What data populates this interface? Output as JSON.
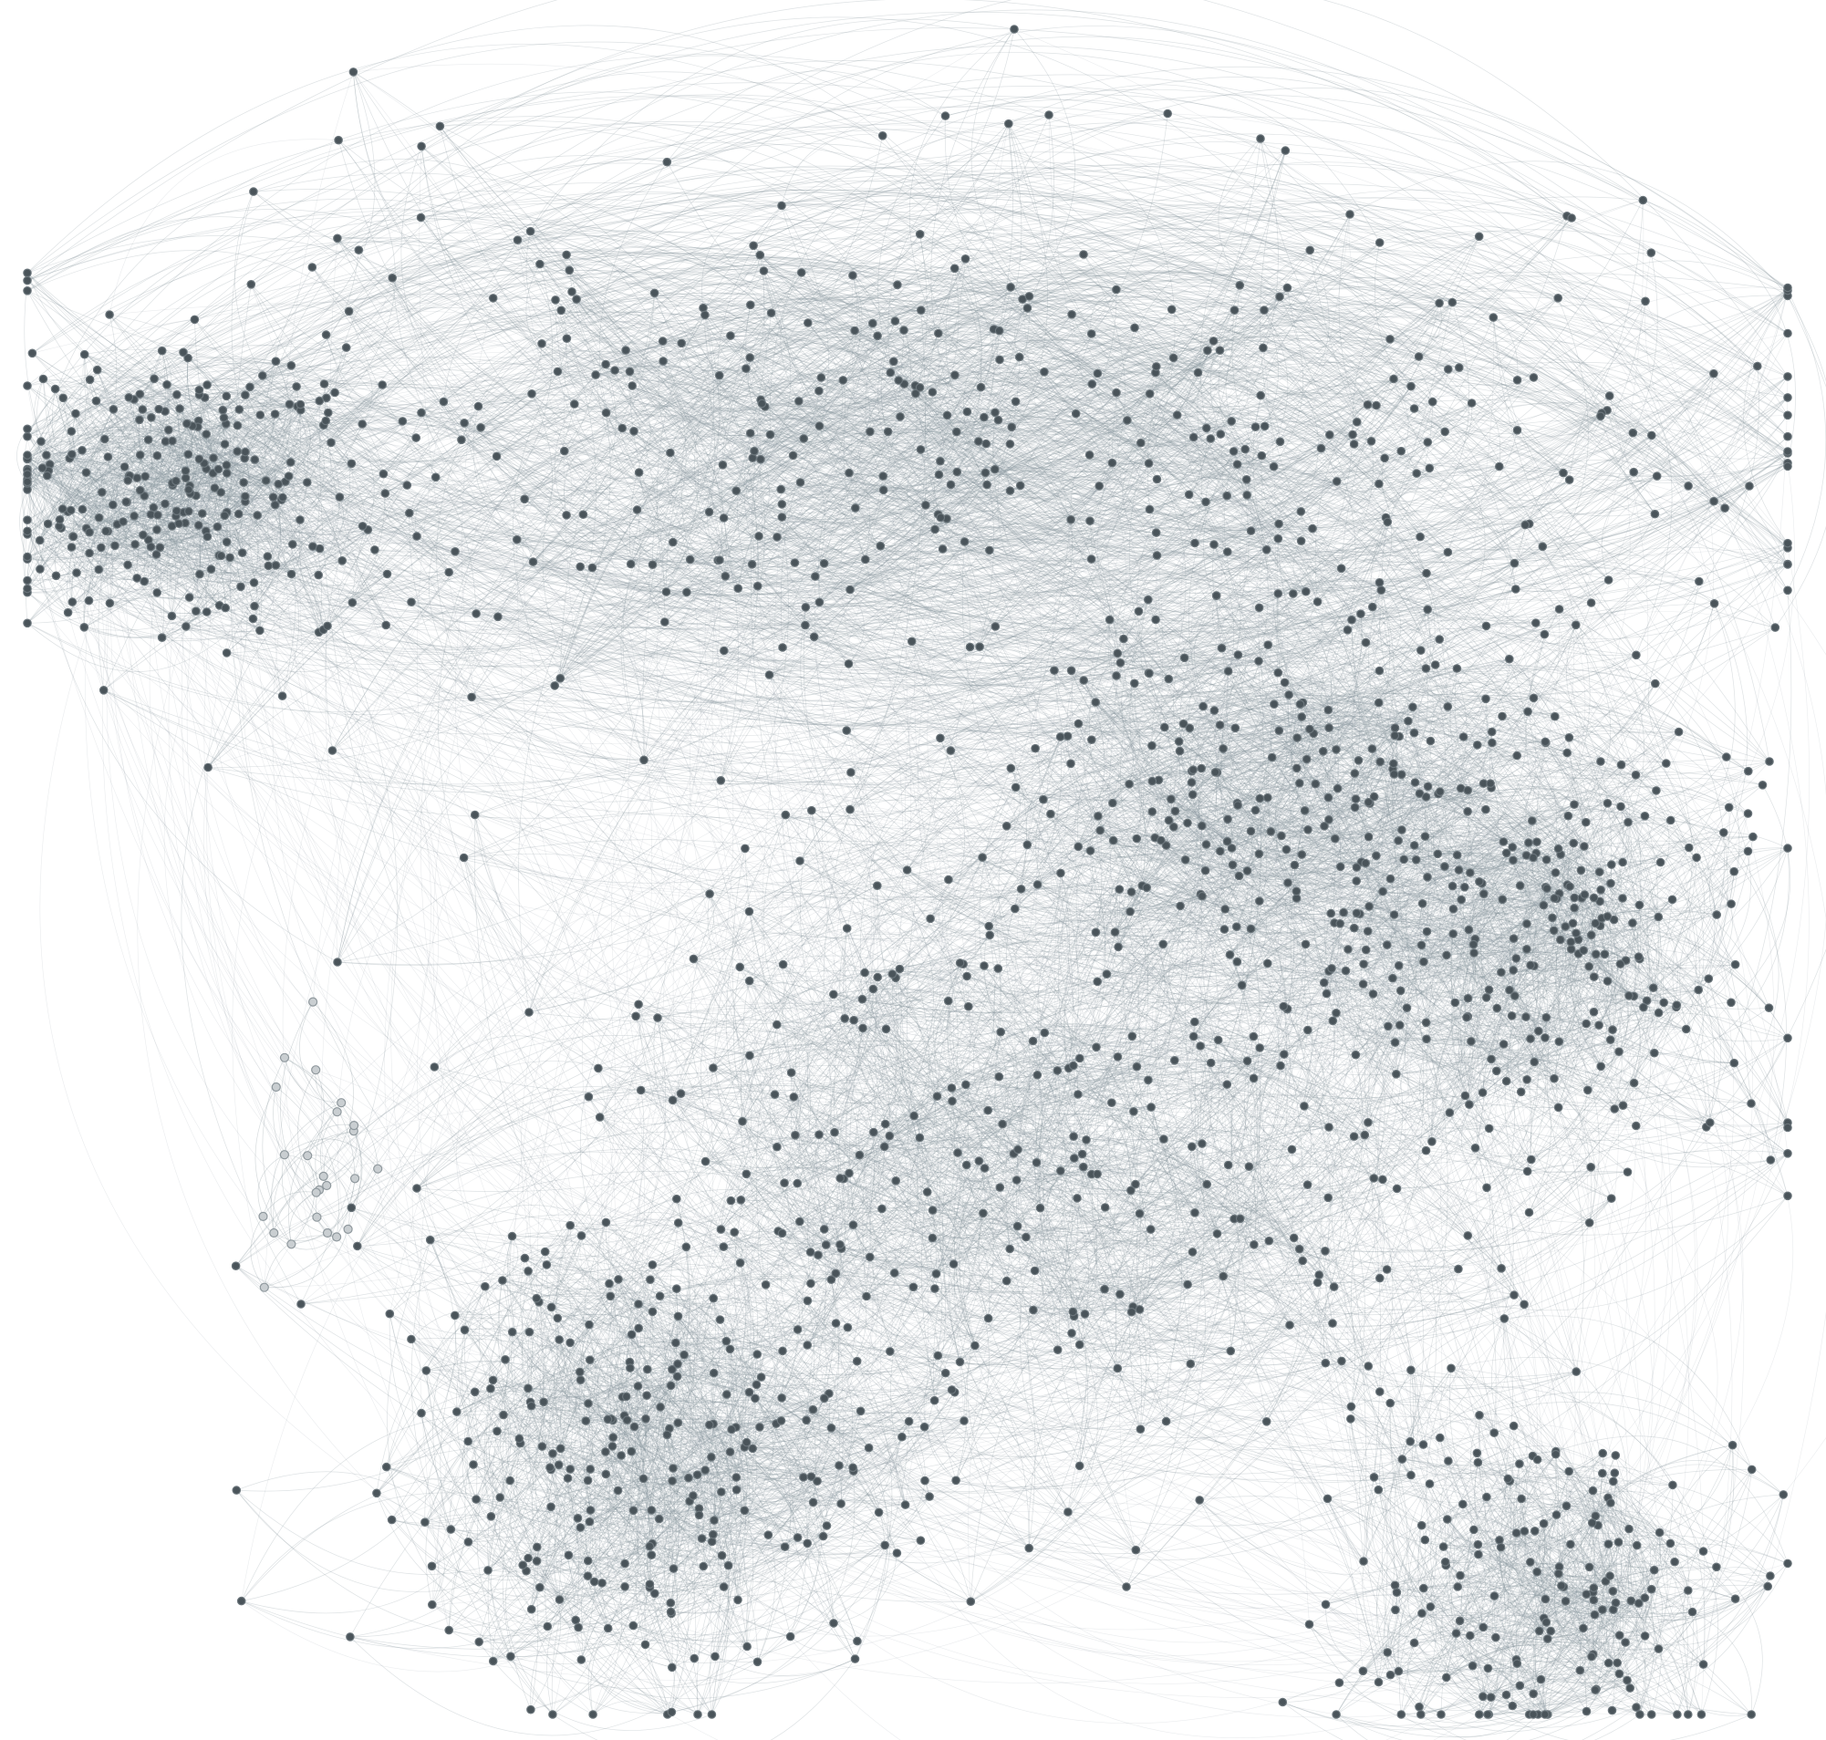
{
  "diagram": {
    "type": "network-graph",
    "layout": "force-directed",
    "labels": "none",
    "colors": {
      "background": "#ffffff",
      "node_fill": "#4a545a",
      "node_stroke": "#6b757b",
      "node_faded_fill": "#c9ced1",
      "node_faded_stroke": "#8f989d",
      "edge_stroke": "#8a979e"
    },
    "clusters": [
      {
        "name": "top-left-dense-cluster",
        "density": "very-high"
      },
      {
        "name": "upper-central-band",
        "density": "medium"
      },
      {
        "name": "central-right-cluster",
        "density": "high"
      },
      {
        "name": "right-side-cluster",
        "density": "high"
      },
      {
        "name": "central-lower-cluster",
        "density": "medium"
      },
      {
        "name": "bottom-left-cluster",
        "density": "high"
      },
      {
        "name": "bottom-right-cluster",
        "density": "high"
      },
      {
        "name": "left-faded-fringe",
        "density": "low"
      }
    ]
  }
}
